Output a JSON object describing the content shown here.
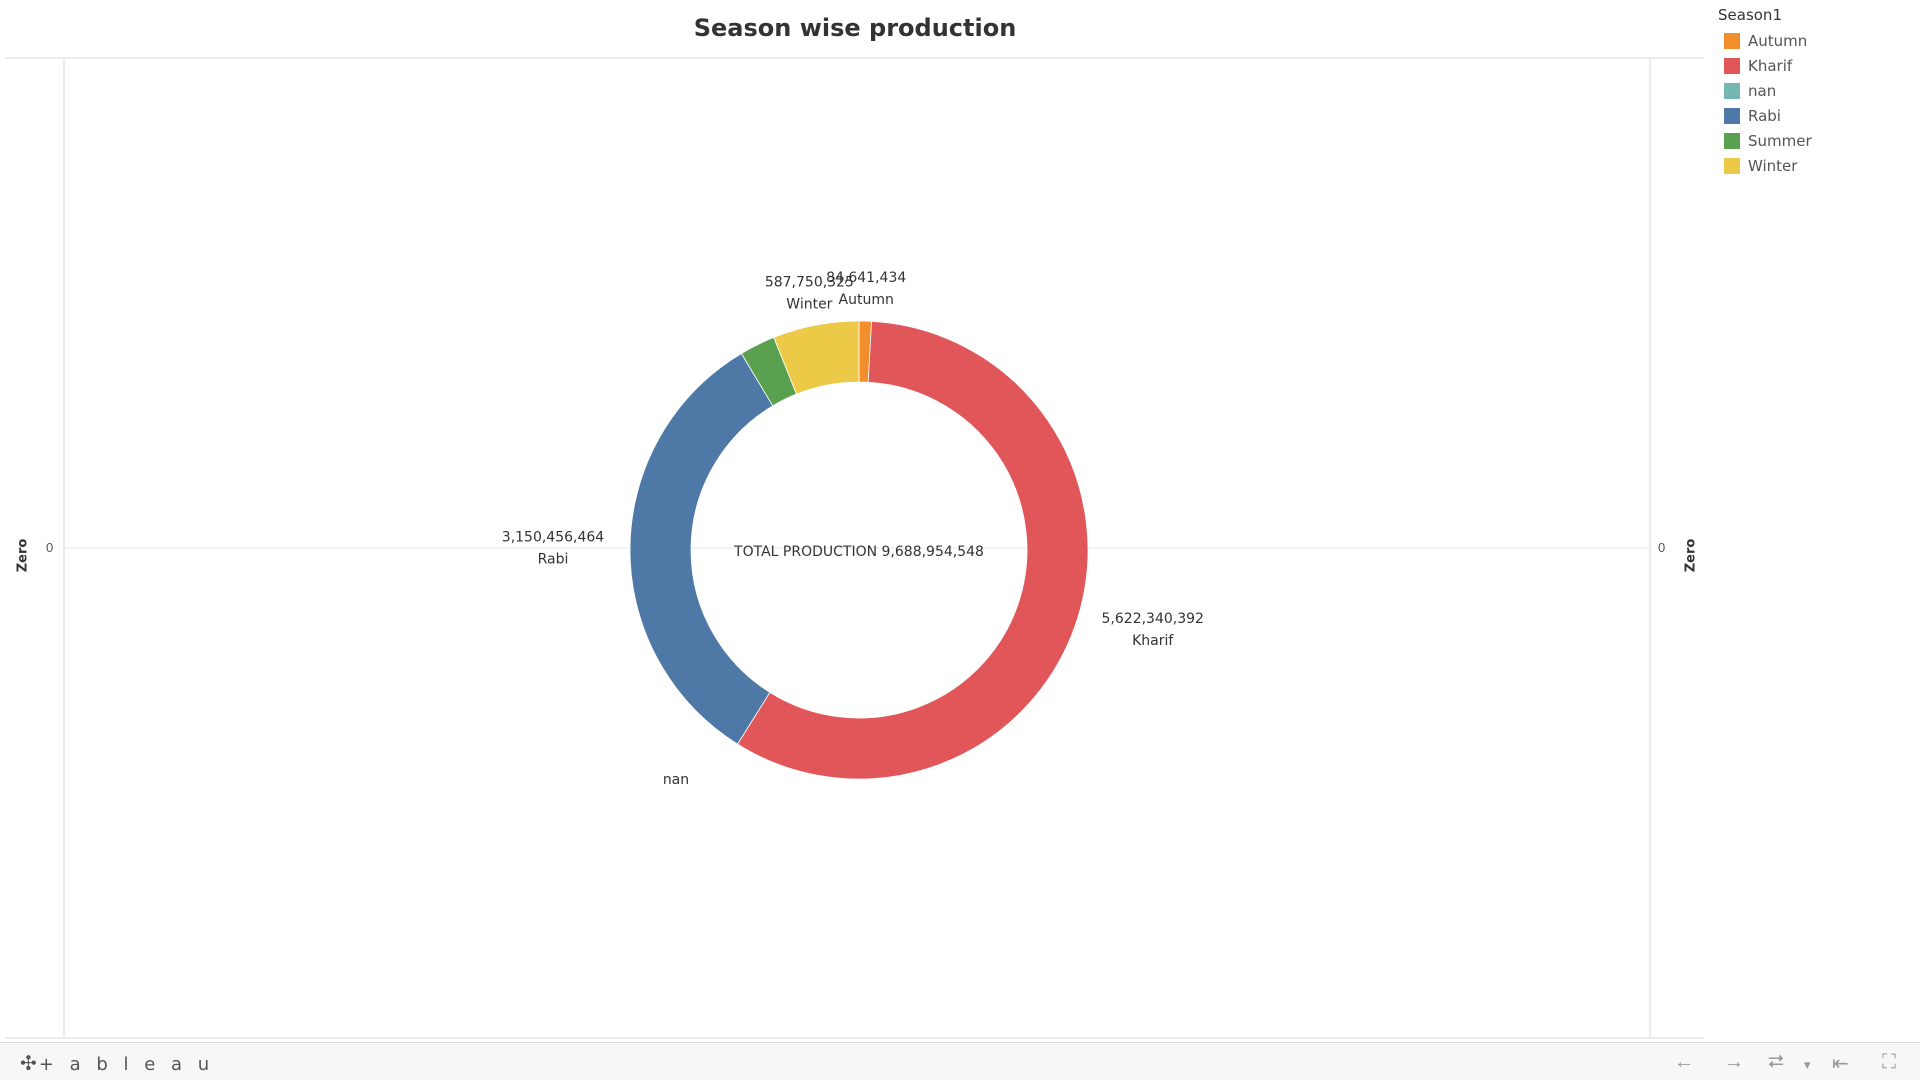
{
  "footer": {
    "brand": "+ a b l e a u",
    "brand_mark_icon": "tableau-logo-icon",
    "tools": [
      {
        "name": "undo-icon",
        "glyph": "←"
      },
      {
        "name": "redo-icon",
        "glyph": "→"
      },
      {
        "name": "revert-icon",
        "glyph": "⮂"
      },
      {
        "name": "revert-dropdown-icon",
        "glyph": "▾"
      },
      {
        "name": "reset-icon",
        "glyph": "⇤"
      },
      {
        "name": "fullscreen-icon",
        "glyph": "⛶"
      }
    ]
  },
  "chart_data": {
    "type": "pie",
    "variant": "donut",
    "title": "Season wise production",
    "center_label": "TOTAL PRODUCTION 9,688,954,548",
    "axis_title_left": "Zero",
    "axis_title_right": "Zero",
    "axis_tick_left": "0",
    "axis_tick_right": "0",
    "legend_title": "Season1",
    "legend_position": "top-right",
    "slices": [
      {
        "label": "Autumn",
        "value": 84641434,
        "value_label": "84,641,434",
        "color": "#f28e2b"
      },
      {
        "label": "Kharif",
        "value": 5622340392,
        "value_label": "5,622,340,392",
        "color": "#e15759"
      },
      {
        "label": "nan",
        "value": 0,
        "value_label": "",
        "color": "#76b7b2"
      },
      {
        "label": "Rabi",
        "value": 3150456464,
        "value_label": "3,150,456,464",
        "color": "#4e79a7"
      },
      {
        "label": "Summer",
        "value": 243766933,
        "value_label": "",
        "color": "#59a14f"
      },
      {
        "label": "Winter",
        "value": 587750325,
        "value_label": "587,750,325",
        "color": "#edc948"
      }
    ]
  }
}
